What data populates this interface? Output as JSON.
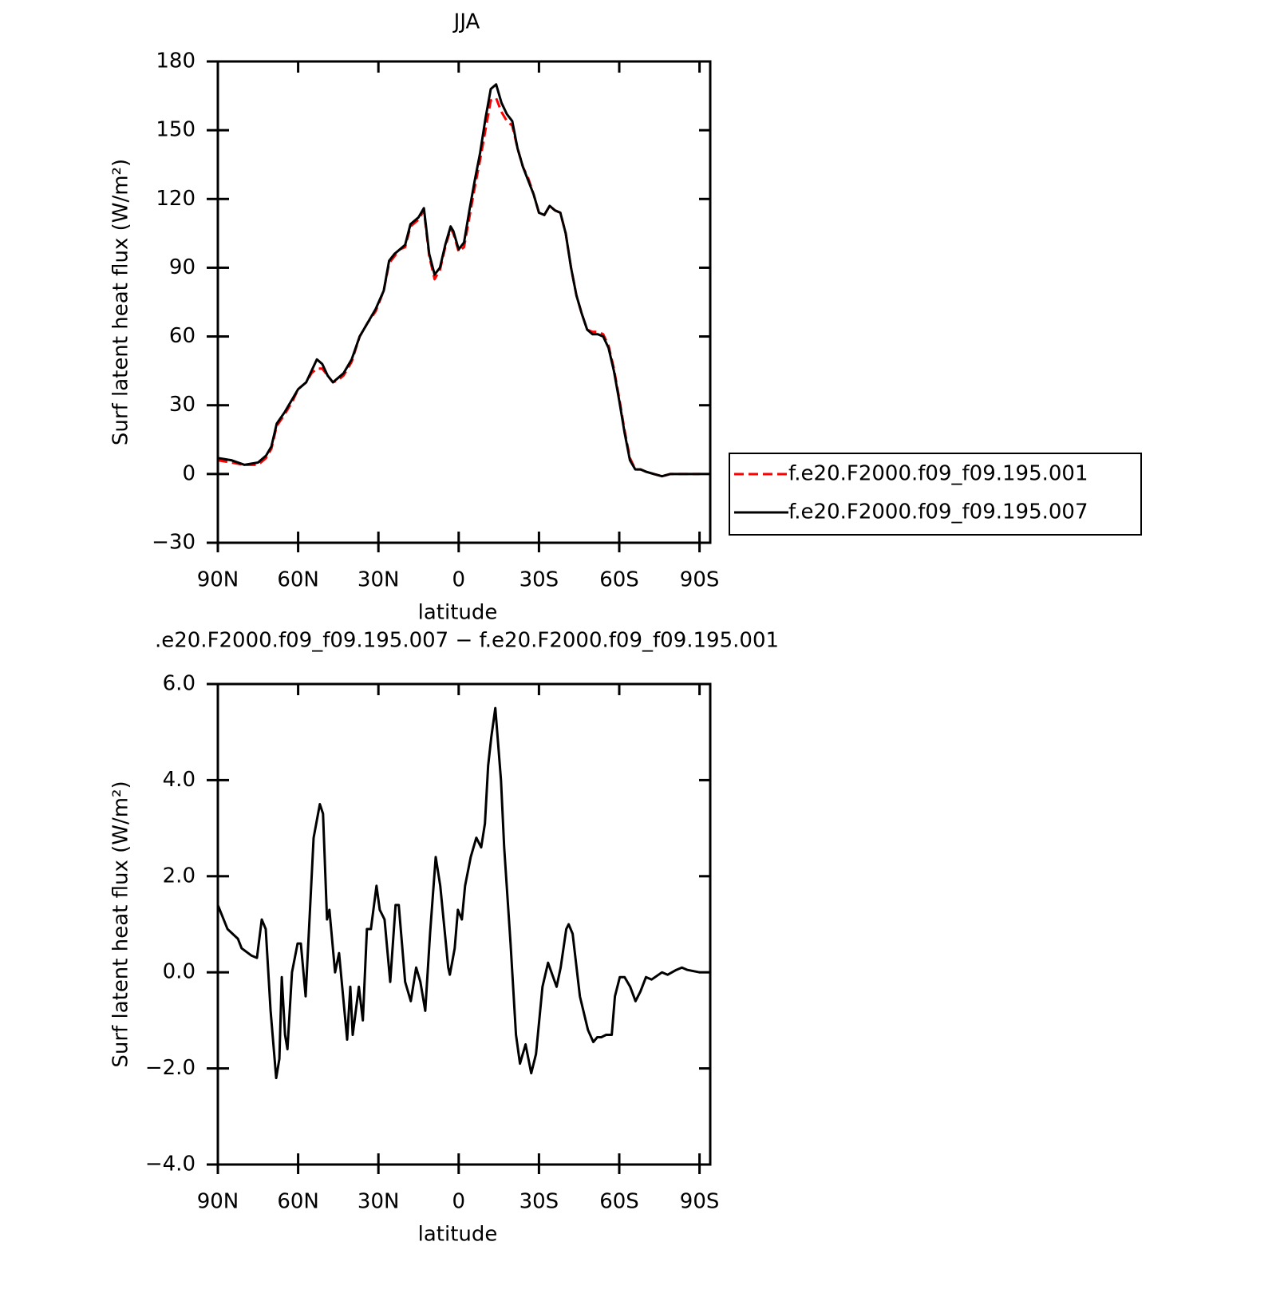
{
  "chart_data": [
    {
      "type": "line",
      "title": "JJA",
      "xlabel": "latitude",
      "ylabel": "Surf latent heat flux (W/m²)",
      "x": [
        90,
        85,
        80,
        75,
        72,
        70,
        68,
        65,
        62,
        60,
        57,
        55,
        53,
        51,
        49,
        47,
        45,
        43,
        40,
        37,
        34,
        31,
        28,
        26,
        24,
        22,
        20,
        18,
        15,
        13,
        11,
        9,
        7,
        5,
        3,
        2,
        0,
        -2,
        -4,
        -6,
        -8,
        -10,
        -12,
        -14,
        -16,
        -18,
        -20,
        -22,
        -24,
        -26,
        -28,
        -30,
        -32,
        -34,
        -36,
        -38,
        -40,
        -42,
        -44,
        -46,
        -48,
        -50,
        -52,
        -54,
        -56,
        -58,
        -60,
        -62,
        -64,
        -66,
        -68,
        -70,
        -73,
        -76,
        -79,
        -82,
        -85,
        -88,
        -90
      ],
      "series": [
        {
          "name": "f.e20.F2000.f09_f09.195.001",
          "color": "#ff0000",
          "dashed": true,
          "values": [
            6,
            5,
            4,
            4,
            7,
            11,
            21,
            26,
            32,
            37,
            40,
            44,
            46,
            46,
            43,
            40,
            41,
            43,
            49,
            60,
            66,
            71,
            80,
            92,
            95,
            98,
            99,
            108,
            111,
            115,
            95,
            85,
            89,
            99,
            107,
            105,
            97,
            99,
            112,
            125,
            137,
            150,
            163,
            164,
            158,
            154,
            152,
            142,
            134,
            129,
            122,
            114,
            113,
            117,
            115,
            114,
            105,
            90,
            78,
            70,
            63,
            62,
            62,
            61,
            56,
            46,
            33,
            19,
            7,
            2,
            2,
            1,
            0,
            -1,
            0,
            0,
            0,
            0,
            0
          ]
        },
        {
          "name": "f.e20.F2000.f09_f09.195.007",
          "color": "#000000",
          "dashed": false,
          "values": [
            7,
            6,
            4,
            5,
            8,
            12,
            22,
            27,
            33,
            37,
            40,
            45,
            50,
            48,
            43,
            40,
            42,
            44,
            50,
            60,
            66,
            72,
            80,
            93,
            96,
            98,
            100,
            109,
            112,
            116,
            96,
            87,
            90,
            100,
            108,
            106,
            98,
            101,
            115,
            128,
            140,
            155,
            168,
            170,
            162,
            157,
            154,
            142,
            134,
            128,
            122,
            114,
            113,
            117,
            115,
            114,
            105,
            90,
            78,
            70,
            63,
            61,
            61,
            60,
            55,
            45,
            32,
            18,
            6,
            2,
            2,
            1,
            0,
            -1,
            0,
            0,
            0,
            0,
            0
          ]
        }
      ],
      "xlim": [
        90,
        -94
      ],
      "xticks": [
        {
          "value": 90,
          "label": "90N"
        },
        {
          "value": 60,
          "label": "60N"
        },
        {
          "value": 30,
          "label": "30N"
        },
        0,
        {
          "value": -30,
          "label": "30S"
        },
        {
          "value": -60,
          "label": "60S"
        },
        {
          "value": -90,
          "label": "90S"
        }
      ],
      "ylim": [
        -30,
        180
      ],
      "yticks": [
        {
          "value": -30,
          "label": "−30"
        },
        0,
        30,
        60,
        90,
        120,
        150,
        180
      ],
      "grid": false,
      "legend": "right"
    },
    {
      "type": "line",
      "title": ".e20.F2000.f09_f09.195.007 − f.e20.F2000.f09_f09.195.001",
      "xlabel": "latitude",
      "ylabel": "Surf latent heat flux (W/m²)",
      "x": [
        90,
        86.4,
        82.5,
        81.1,
        77.5,
        75.4,
        73.6,
        72.1,
        70.3,
        68.2,
        67.0,
        66.1,
        64.9,
        64.0,
        62.3,
        60.2,
        59.0,
        57.2,
        54.2,
        51.9,
        50.7,
        49.2,
        48.3,
        46.2,
        44.7,
        41.7,
        40.5,
        39.6,
        37.3,
        35.8,
        34.3,
        32.8,
        30.7,
        29.5,
        27.7,
        25.6,
        23.6,
        22.4,
        20.0,
        17.9,
        15.9,
        14.3,
        12.5,
        10.7,
        8.6,
        6.9,
        3.9,
        3.3,
        1.5,
        0.3,
        -1.2,
        -2.4,
        -4.5,
        -6.6,
        -8.4,
        -9.8,
        -11.0,
        -12.2,
        -13.7,
        -15.8,
        -17.0,
        -19.4,
        -21.4,
        -22.9,
        -25.0,
        -27.1,
        -28.9,
        -31.3,
        -33.4,
        -36.6,
        -38.1,
        -40.2,
        -41.1,
        -42.6,
        -45.3,
        -48.3,
        -50.3,
        -51.8,
        -53.3,
        -55.1,
        -57.2,
        -58.4,
        -60.2,
        -62.0,
        -64.1,
        -66.1,
        -67.9,
        -70.0,
        -72.1,
        -76.0,
        -78.1,
        -81.3,
        -83.4,
        -85.5,
        -90.0
      ],
      "series": [
        {
          "color": "#000000",
          "dashed": false,
          "values": [
            1.4,
            0.9,
            0.7,
            0.5,
            0.35,
            0.3,
            1.1,
            0.9,
            -0.8,
            -2.2,
            -1.8,
            -0.1,
            -1.3,
            -1.6,
            0,
            0.6,
            0.6,
            -0.5,
            2.8,
            3.5,
            3.3,
            1.1,
            1.3,
            0,
            0.4,
            -1.4,
            -0.3,
            -1.3,
            -0.3,
            -1.0,
            0.9,
            0.9,
            1.8,
            1.3,
            1.1,
            -0.2,
            1.4,
            1.4,
            -0.2,
            -0.6,
            0.1,
            -0.2,
            -0.8,
            0.8,
            2.4,
            1.8,
            0.1,
            -0.05,
            0.5,
            1.3,
            1.1,
            1.8,
            2.4,
            2.8,
            2.6,
            3.1,
            4.3,
            4.9,
            5.5,
            4.0,
            2.6,
            0.6,
            -1.3,
            -1.9,
            -1.5,
            -2.1,
            -1.7,
            -0.3,
            0.2,
            -0.3,
            0.1,
            0.9,
            1.0,
            0.8,
            -0.5,
            -1.2,
            -1.45,
            -1.35,
            -1.35,
            -1.3,
            -1.3,
            -0.5,
            -0.1,
            -0.1,
            -0.3,
            -0.6,
            -0.4,
            -0.1,
            -0.15,
            0,
            -0.05,
            0.05,
            0.1,
            0.05,
            0
          ]
        }
      ],
      "xlim": [
        90,
        -94
      ],
      "xticks": [
        {
          "value": 90,
          "label": "90N"
        },
        {
          "value": 60,
          "label": "60N"
        },
        {
          "value": 30,
          "label": "30N"
        },
        0,
        {
          "value": -30,
          "label": "30S"
        },
        {
          "value": -60,
          "label": "60S"
        },
        {
          "value": -90,
          "label": "90S"
        }
      ],
      "ylim": [
        -4,
        6
      ],
      "yticks": [
        {
          "value": -4,
          "label": "−4.0"
        },
        {
          "value": -2,
          "label": "−2.0"
        },
        {
          "value": 0,
          "label": "0.0"
        },
        {
          "value": 2,
          "label": "2.0"
        },
        {
          "value": 4,
          "label": "4.0"
        },
        {
          "value": 6,
          "label": "6.0"
        }
      ],
      "grid": false
    }
  ]
}
